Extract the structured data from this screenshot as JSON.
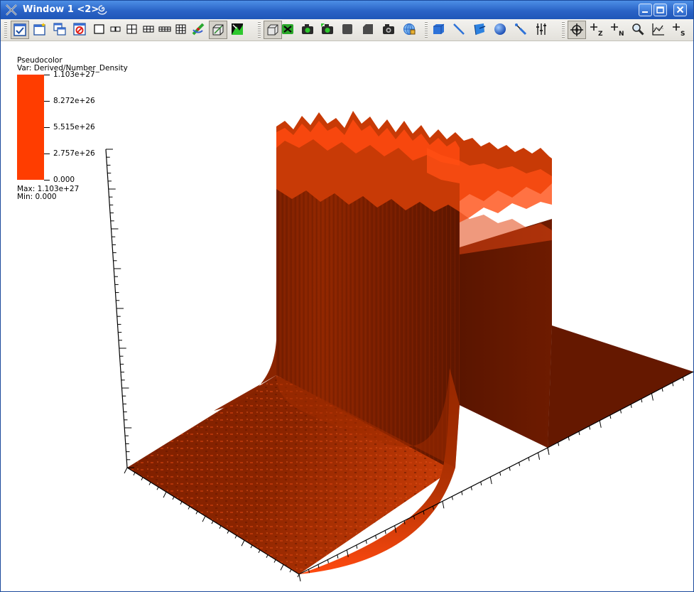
{
  "window": {
    "title": "Window 1 <2>"
  },
  "toolbar": {
    "buttons": [
      {
        "name": "active-window-button",
        "pressed": true
      },
      {
        "name": "new-window-button",
        "pressed": false
      },
      {
        "name": "copy-window-button",
        "pressed": false
      },
      {
        "name": "clear-window-button",
        "pressed": false
      },
      {
        "name": "layout-1x1-button",
        "pressed": false
      },
      {
        "name": "layout-1x2-button",
        "pressed": false
      },
      {
        "name": "layout-2x2-button",
        "pressed": false
      },
      {
        "name": "layout-2x3-button",
        "pressed": false
      },
      {
        "name": "layout-2x4-button",
        "pressed": false
      },
      {
        "name": "layout-3x3-button",
        "pressed": false
      },
      {
        "name": "spin-mode-button",
        "pressed": false
      },
      {
        "name": "full-frame-button",
        "pressed": true
      },
      {
        "name": "lock-view-button",
        "pressed": false
      },
      {
        "name": "perspective-button",
        "pressed": true
      },
      {
        "name": "reset-view-button",
        "pressed": false
      },
      {
        "name": "recenter-view-button",
        "pressed": false
      },
      {
        "name": "undo-view-button",
        "pressed": false
      },
      {
        "name": "invert-background-button",
        "pressed": false
      },
      {
        "name": "lock-time-button",
        "pressed": false
      },
      {
        "name": "save-image-button",
        "pressed": false
      },
      {
        "name": "lock-tools-button",
        "pressed": false
      },
      {
        "name": "box-tool-button",
        "pressed": false
      },
      {
        "name": "line-tool-button",
        "pressed": false
      },
      {
        "name": "plane-tool-button",
        "pressed": false
      },
      {
        "name": "sphere-tool-button",
        "pressed": false
      },
      {
        "name": "point-tool-button",
        "pressed": false
      },
      {
        "name": "axis-restriction-button",
        "pressed": false
      },
      {
        "name": "navigate-mode-button",
        "pressed": true
      },
      {
        "name": "zone-pick-button",
        "pressed": false
      },
      {
        "name": "node-pick-button",
        "pressed": false
      },
      {
        "name": "zoom-mode-button",
        "pressed": false
      },
      {
        "name": "lineout-mode-button",
        "pressed": false
      },
      {
        "name": "spreadsheet-pick-button",
        "pressed": false
      }
    ],
    "pick_labels": {
      "zone": "Z",
      "node": "N",
      "spreadsheet": "S"
    }
  },
  "legend": {
    "plot_type": "Pseudocolor",
    "variable": "Var: Derived/Number_Density",
    "bar_color": "#ff3d00",
    "tick_labels": [
      "1.103e+27",
      "8.272e+26",
      "5.515e+26",
      "2.757e+26",
      "0.000"
    ],
    "max_label": "Max:  1.103e+27",
    "min_label": "Min:  0.000"
  },
  "colors": {
    "title_bar": "#2a63c6",
    "surface_dark": "#6b1a00",
    "surface_mid": "#a52e00",
    "surface_bright": "#ff4a10"
  }
}
